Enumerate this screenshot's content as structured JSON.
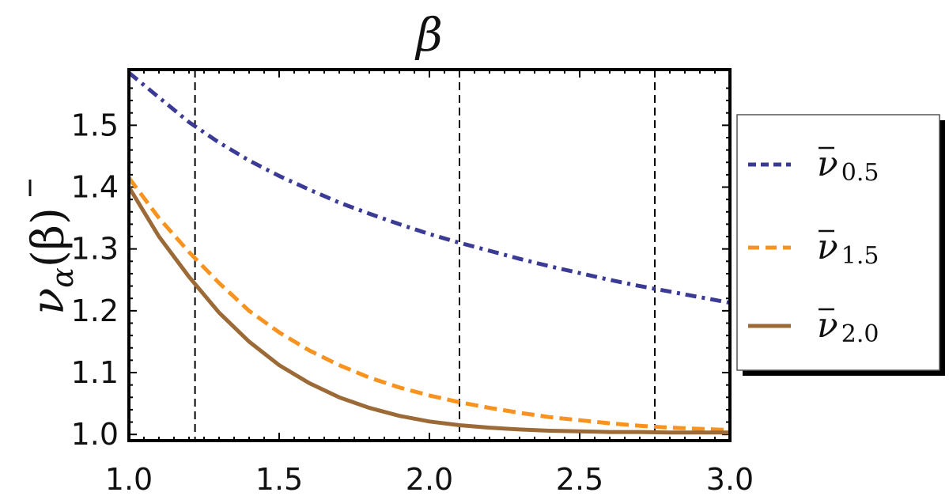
{
  "chart_data": {
    "type": "line",
    "title": "β",
    "ylabel": "ν̄α(β)",
    "ylabel_parts": {
      "symbol": "ν",
      "subscript": "α",
      "argument": "(β)"
    },
    "xlabel": "",
    "xlim": [
      1.0,
      3.0
    ],
    "ylim": [
      0.99,
      1.59
    ],
    "x_ticks": [
      {
        "value": 1.0,
        "label": "1.0"
      },
      {
        "value": 1.5,
        "label": "1.5"
      },
      {
        "value": 2.0,
        "label": "2.0"
      },
      {
        "value": 2.5,
        "label": "2.5"
      },
      {
        "value": 3.0,
        "label": "3.0"
      }
    ],
    "y_ticks": [
      {
        "value": 1.0,
        "label": "1.0"
      },
      {
        "value": 1.1,
        "label": "1.1"
      },
      {
        "value": 1.2,
        "label": "1.2"
      },
      {
        "value": 1.3,
        "label": "1.3"
      },
      {
        "value": 1.4,
        "label": "1.4"
      },
      {
        "value": 1.5,
        "label": "1.5"
      }
    ],
    "vertical_lines": [
      1.22,
      2.1,
      2.75
    ],
    "grid": false,
    "legend_position": "right",
    "x": [
      1.0,
      1.1,
      1.2,
      1.3,
      1.4,
      1.5,
      1.6,
      1.7,
      1.8,
      1.9,
      2.0,
      2.1,
      2.2,
      2.3,
      2.4,
      2.5,
      2.6,
      2.7,
      2.8,
      2.9,
      3.0
    ],
    "series": [
      {
        "name": "ν̄0.5",
        "legend_symbol": "ν",
        "legend_subscript": "0.5",
        "color": "#3b3b96",
        "dash": "dashdot",
        "values": [
          1.585,
          1.545,
          1.505,
          1.472,
          1.443,
          1.418,
          1.396,
          1.375,
          1.357,
          1.34,
          1.324,
          1.31,
          1.297,
          1.284,
          1.272,
          1.261,
          1.25,
          1.24,
          1.231,
          1.222,
          1.213
        ]
      },
      {
        "name": "ν̄1.5",
        "legend_symbol": "ν",
        "legend_subscript": "1.5",
        "color": "#f7931e",
        "dash": "dashed",
        "values": [
          1.415,
          1.35,
          1.295,
          1.245,
          1.2,
          1.165,
          1.136,
          1.112,
          1.092,
          1.076,
          1.063,
          1.052,
          1.043,
          1.035,
          1.028,
          1.023,
          1.018,
          1.014,
          1.011,
          1.009,
          1.007
        ]
      },
      {
        "name": "ν̄2.0",
        "legend_symbol": "ν",
        "legend_subscript": "2.0",
        "color": "#9c6a36",
        "dash": "solid",
        "values": [
          1.4,
          1.32,
          1.255,
          1.197,
          1.15,
          1.112,
          1.083,
          1.06,
          1.043,
          1.03,
          1.021,
          1.015,
          1.011,
          1.008,
          1.006,
          1.005,
          1.004,
          1.004,
          1.003,
          1.003,
          1.003
        ]
      }
    ]
  }
}
